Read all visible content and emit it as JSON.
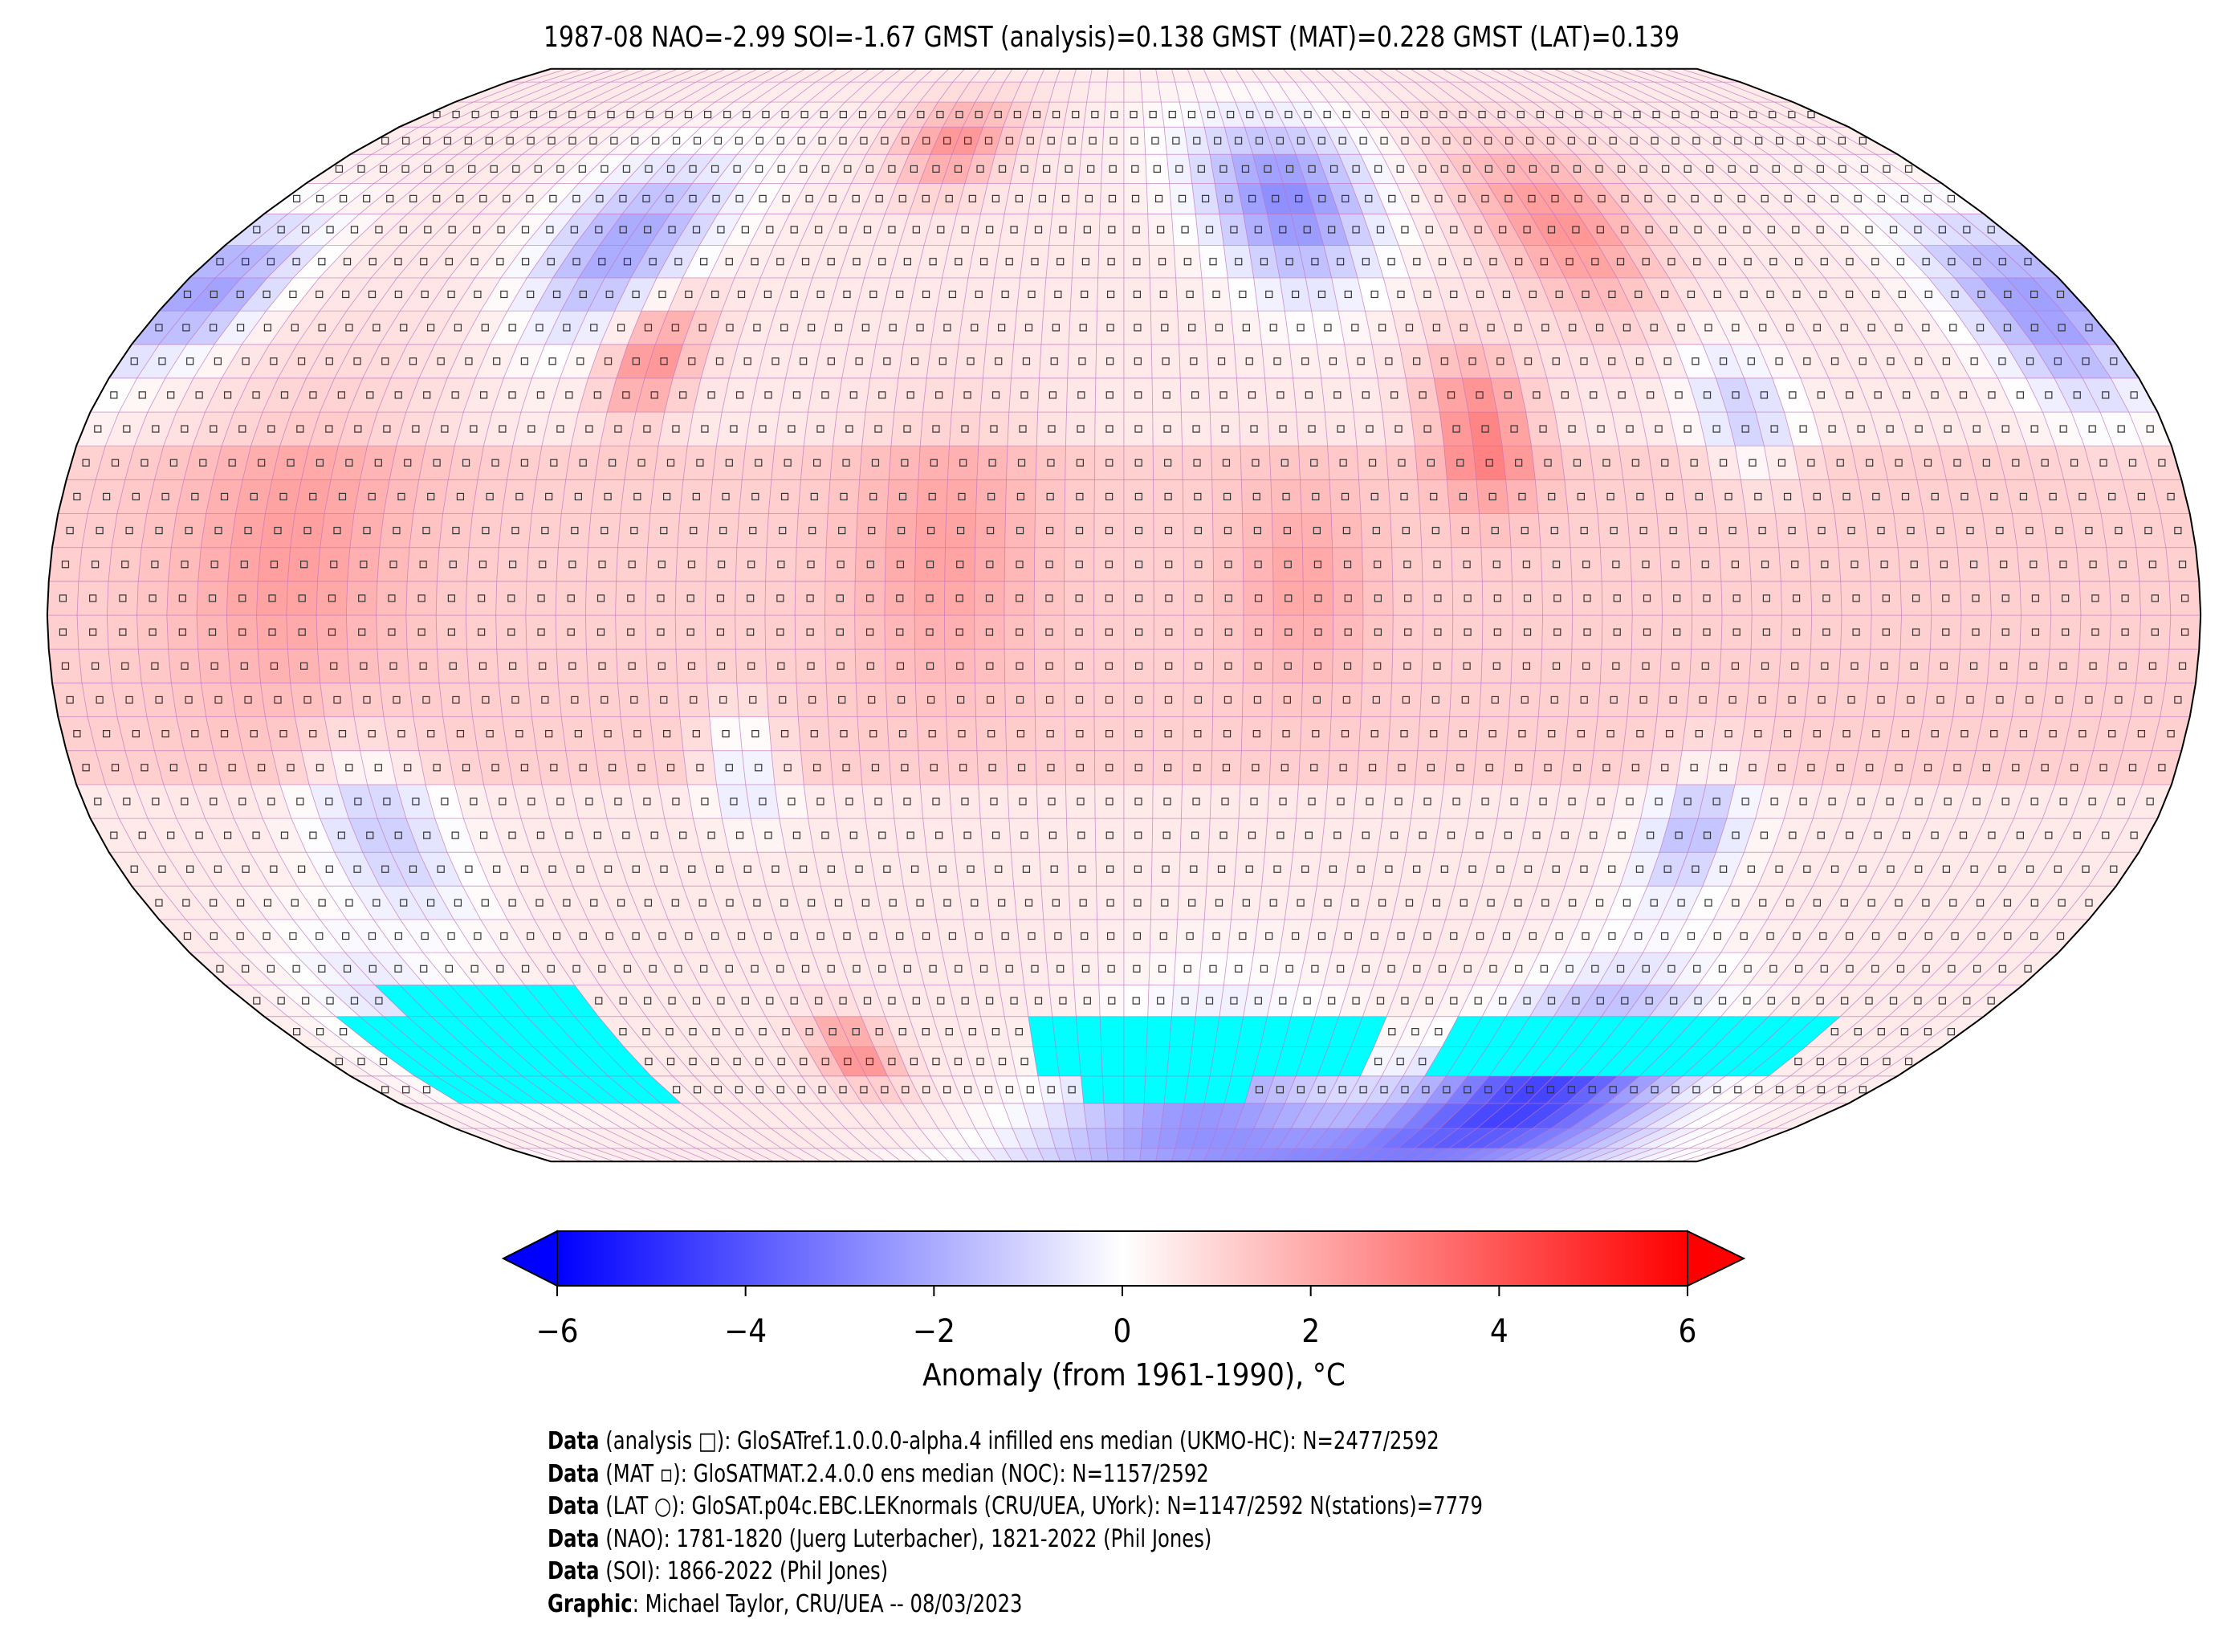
{
  "title": "1987-08 NAO=-2.99 SOI=-1.67 GMST (analysis)=0.138 GMST (MAT)=0.228 GMST (LAT)=0.139",
  "colorbar": {
    "label": "Anomaly (from 1961-1990), °C",
    "ticks": [
      "−6",
      "−4",
      "−2",
      "0",
      "2",
      "4",
      "6"
    ],
    "range": [
      -6,
      6
    ],
    "colormap": [
      "#0000ff",
      "#ffffff",
      "#ff0000"
    ],
    "extend": "both"
  },
  "map": {
    "projection": "Robinson",
    "grid_resolution_deg": 5,
    "missing_color": "#00ffff",
    "gridline_color": "#c070c0"
  },
  "footer": [
    {
      "bold": "Data",
      "text": " (analysis □): GloSATref.1.0.0.0-alpha.4 infilled ens median (UKMO-HC): N=2477/2592"
    },
    {
      "bold": "Data",
      "text": " (MAT ▫): GloSATMAT.2.4.0.0 ens median (NOC): N=1157/2592"
    },
    {
      "bold": "Data",
      "text": " (LAT ○): GloSAT.p04c.EBC.LEKnormals (CRU/UEA, UYork): N=1147/2592 N(stations)=7779"
    },
    {
      "bold": "Data",
      "text": " (NAO): 1781-1820 (Juerg Luterbacher), 1821-2022 (Phil Jones)"
    },
    {
      "bold": "Data",
      "text": " (SOI): 1866-2022 (Phil Jones)"
    },
    {
      "bold": "Graphic",
      "text": ": Michael Taylor, CRU/UEA -- 08/03/2023"
    }
  ]
}
